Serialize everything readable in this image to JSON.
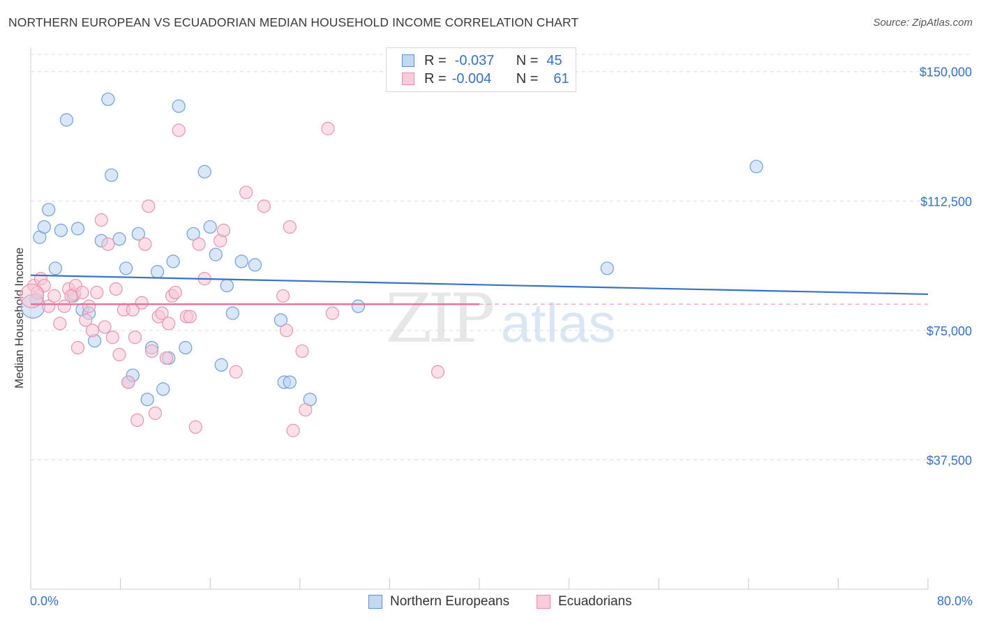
{
  "title": "NORTHERN EUROPEAN VS ECUADORIAN MEDIAN HOUSEHOLD INCOME CORRELATION CHART",
  "source": "Source: ZipAtlas.com",
  "colors": {
    "blue": "#3571c8",
    "pink": "#e66a93",
    "blue_fill": "#b9d3f2",
    "pink_fill": "#f7c6d6"
  },
  "legend": {
    "r_label": "R =",
    "n_label": "N =",
    "series": [
      {
        "r": "-0.037",
        "n": "45"
      },
      {
        "r": "-0.004",
        "n": "61"
      }
    ]
  },
  "bottom_legend": [
    "Northern Europeans",
    "Ecuadorians"
  ],
  "watermark": {
    "zip": "ZIP",
    "atlas": "atlas"
  },
  "chart_data": {
    "type": "scatter",
    "title": "NORTHERN EUROPEAN VS ECUADORIAN MEDIAN HOUSEHOLD INCOME CORRELATION CHART",
    "xlabel": "",
    "ylabel": "Median Household Income",
    "xlim": [
      0,
      80
    ],
    "ylim": [
      0,
      155000
    ],
    "x_tick_labels": [
      "0.0%",
      "80.0%"
    ],
    "y_ticks": [
      37500,
      75000,
      112500,
      150000
    ],
    "y_tick_labels": [
      "$37,500",
      "$75,000",
      "$112,500",
      "$150,000"
    ],
    "grid": true,
    "series": [
      {
        "name": "Northern Europeans",
        "color": "#3571c8",
        "trend": {
          "x": [
            0,
            80
          ],
          "y": [
            91000,
            85500
          ]
        },
        "points": [
          [
            0.5,
            84000
          ],
          [
            0.8,
            102000
          ],
          [
            1.2,
            105000
          ],
          [
            1.6,
            110000
          ],
          [
            2.2,
            93000
          ],
          [
            2.7,
            104000
          ],
          [
            3.2,
            136000
          ],
          [
            3.8,
            85000
          ],
          [
            4.2,
            104500
          ],
          [
            4.6,
            81000
          ],
          [
            5.2,
            80000
          ],
          [
            5.7,
            72000
          ],
          [
            6.3,
            101000
          ],
          [
            6.9,
            142000
          ],
          [
            7.2,
            120000
          ],
          [
            7.9,
            101500
          ],
          [
            8.5,
            93000
          ],
          [
            8.7,
            60000
          ],
          [
            9.1,
            62000
          ],
          [
            9.6,
            103000
          ],
          [
            10.4,
            55000
          ],
          [
            10.8,
            70000
          ],
          [
            11.3,
            92000
          ],
          [
            11.8,
            58000
          ],
          [
            12.3,
            67000
          ],
          [
            12.7,
            95000
          ],
          [
            13.2,
            140000
          ],
          [
            13.8,
            70000
          ],
          [
            14.5,
            103000
          ],
          [
            15.5,
            121000
          ],
          [
            16,
            105000
          ],
          [
            16.5,
            97000
          ],
          [
            17,
            65000
          ],
          [
            17.5,
            88000
          ],
          [
            18,
            80000
          ],
          [
            18.8,
            95000
          ],
          [
            20,
            94000
          ],
          [
            22.3,
            78000
          ],
          [
            22.6,
            60000
          ],
          [
            23.1,
            60000
          ],
          [
            24.9,
            55000
          ],
          [
            29.2,
            82000
          ],
          [
            51.4,
            93000
          ],
          [
            64.7,
            122500
          ],
          [
            0.2,
            82000
          ]
        ]
      },
      {
        "name": "Ecuadorians",
        "color": "#e66a93",
        "trend": {
          "x": [
            0,
            40
          ],
          "y": [
            82600,
            82600
          ]
        },
        "points": [
          [
            0.3,
            88000
          ],
          [
            0.6,
            86000
          ],
          [
            0.9,
            90000
          ],
          [
            1.2,
            88000
          ],
          [
            1.6,
            82000
          ],
          [
            2.1,
            85000
          ],
          [
            2.6,
            77000
          ],
          [
            3,
            82000
          ],
          [
            3.4,
            87000
          ],
          [
            3.9,
            85500
          ],
          [
            4,
            88000
          ],
          [
            4.2,
            70000
          ],
          [
            4.6,
            86000
          ],
          [
            4.9,
            78000
          ],
          [
            5.2,
            82000
          ],
          [
            5.5,
            75000
          ],
          [
            5.9,
            86000
          ],
          [
            6.3,
            107000
          ],
          [
            6.6,
            76000
          ],
          [
            6.9,
            100000
          ],
          [
            7.3,
            73000
          ],
          [
            7.6,
            87000
          ],
          [
            7.9,
            68000
          ],
          [
            8.3,
            81000
          ],
          [
            8.7,
            60000
          ],
          [
            9.1,
            81000
          ],
          [
            9.3,
            73000
          ],
          [
            9.5,
            49000
          ],
          [
            9.9,
            83000
          ],
          [
            10.2,
            100000
          ],
          [
            10.5,
            111000
          ],
          [
            10.8,
            69000
          ],
          [
            11.1,
            51000
          ],
          [
            11.4,
            79000
          ],
          [
            11.7,
            80000
          ],
          [
            12.1,
            67000
          ],
          [
            12.3,
            77000
          ],
          [
            12.6,
            85000
          ],
          [
            12.9,
            86000
          ],
          [
            13.2,
            133000
          ],
          [
            13.9,
            79000
          ],
          [
            14.2,
            79000
          ],
          [
            14.7,
            47000
          ],
          [
            15,
            100000
          ],
          [
            15.5,
            90000
          ],
          [
            16.9,
            101000
          ],
          [
            17.2,
            104000
          ],
          [
            18.3,
            63000
          ],
          [
            19.2,
            115000
          ],
          [
            20.8,
            111000
          ],
          [
            22.5,
            85000
          ],
          [
            22.8,
            75000
          ],
          [
            23.1,
            105000
          ],
          [
            23.4,
            46000
          ],
          [
            24.2,
            69000
          ],
          [
            24.5,
            52000
          ],
          [
            26.5,
            133500
          ],
          [
            26.9,
            80000
          ],
          [
            36.3,
            63000
          ],
          [
            3.6,
            85000
          ],
          [
            0.1,
            85000
          ]
        ]
      }
    ]
  }
}
